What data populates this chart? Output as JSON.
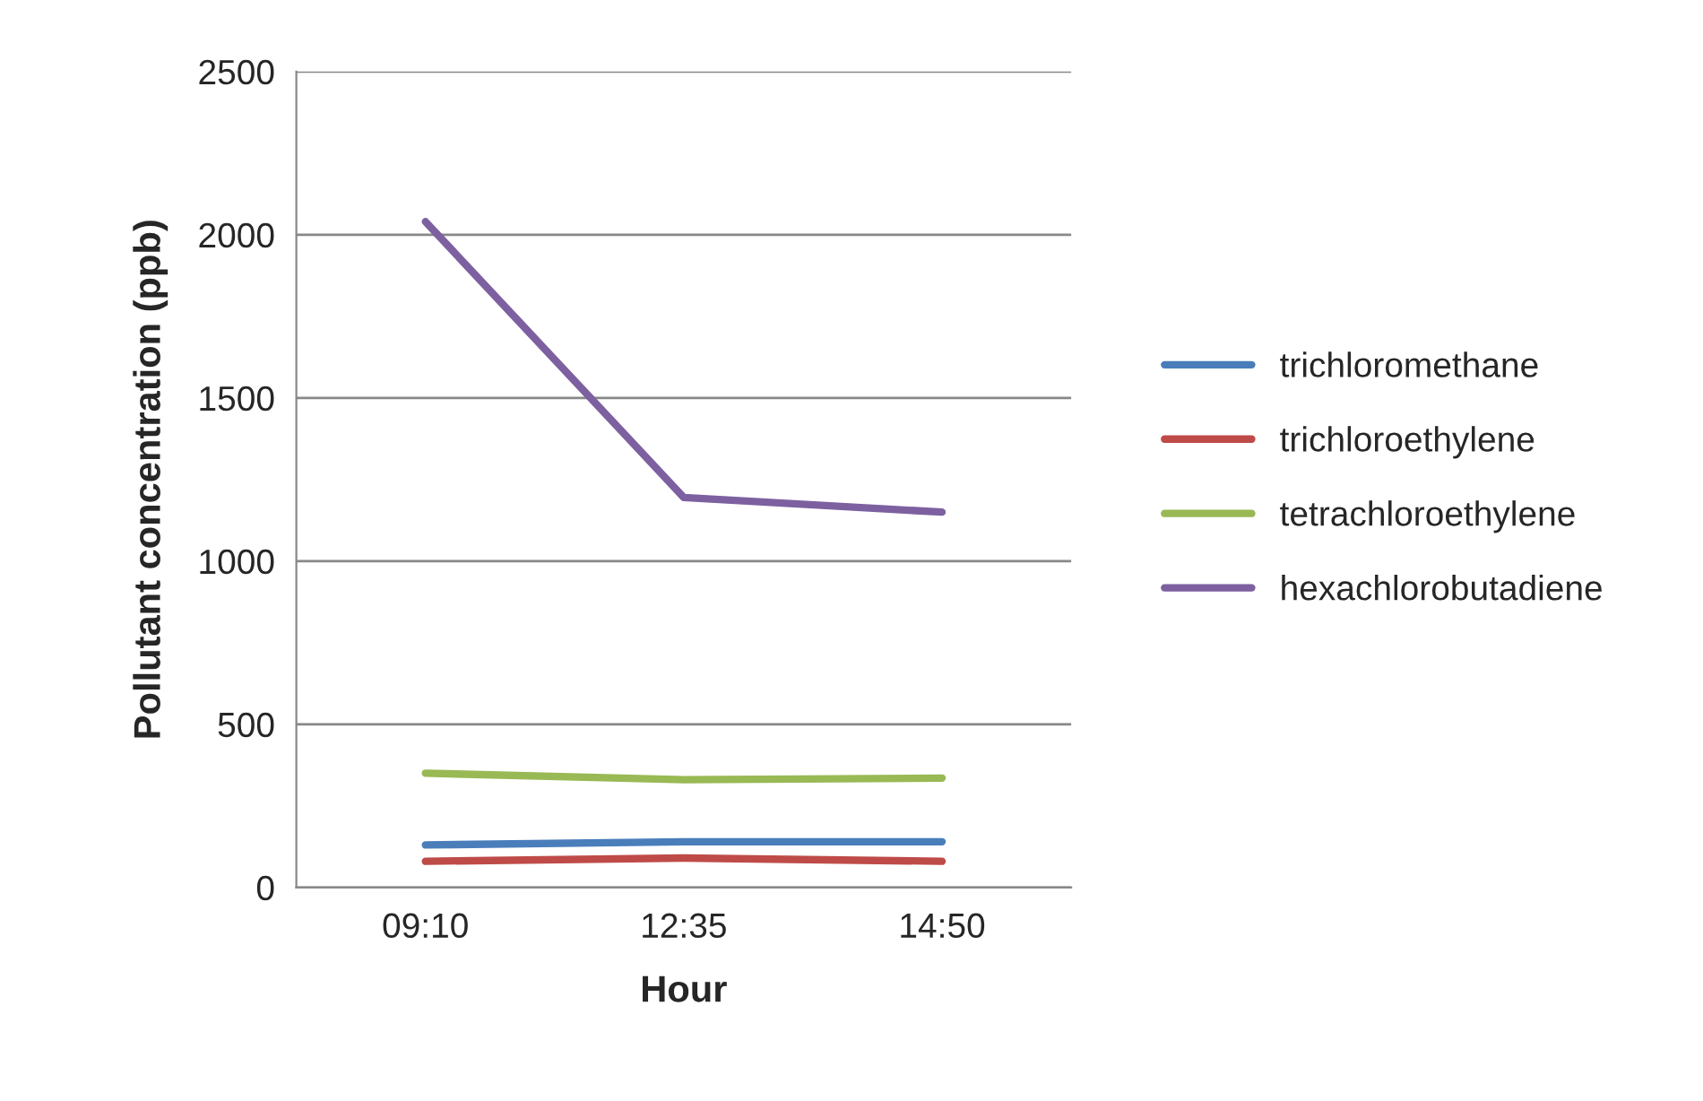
{
  "chart_data": {
    "type": "line",
    "xlabel": "Hour",
    "ylabel": "Pollutant concentration (ppb)",
    "categories": [
      "09:10",
      "12:35",
      "14:50"
    ],
    "series": [
      {
        "name": "trichloromethane",
        "color": "#4a7ebb",
        "values": [
          130,
          140,
          140
        ]
      },
      {
        "name": "trichloroethylene",
        "color": "#be4b48",
        "values": [
          80,
          90,
          80
        ]
      },
      {
        "name": "tetrachloroethylene",
        "color": "#98b954",
        "values": [
          350,
          330,
          335
        ]
      },
      {
        "name": "hexachlorobutadiene",
        "color": "#7d60a0",
        "values": [
          2040,
          1195,
          1150
        ]
      }
    ],
    "ylim": [
      0,
      2500
    ],
    "yticks": [
      0,
      500,
      1000,
      1500,
      2000,
      2500
    ],
    "grid": "y",
    "legend": "right",
    "marker": "none",
    "line_style": "solid"
  }
}
